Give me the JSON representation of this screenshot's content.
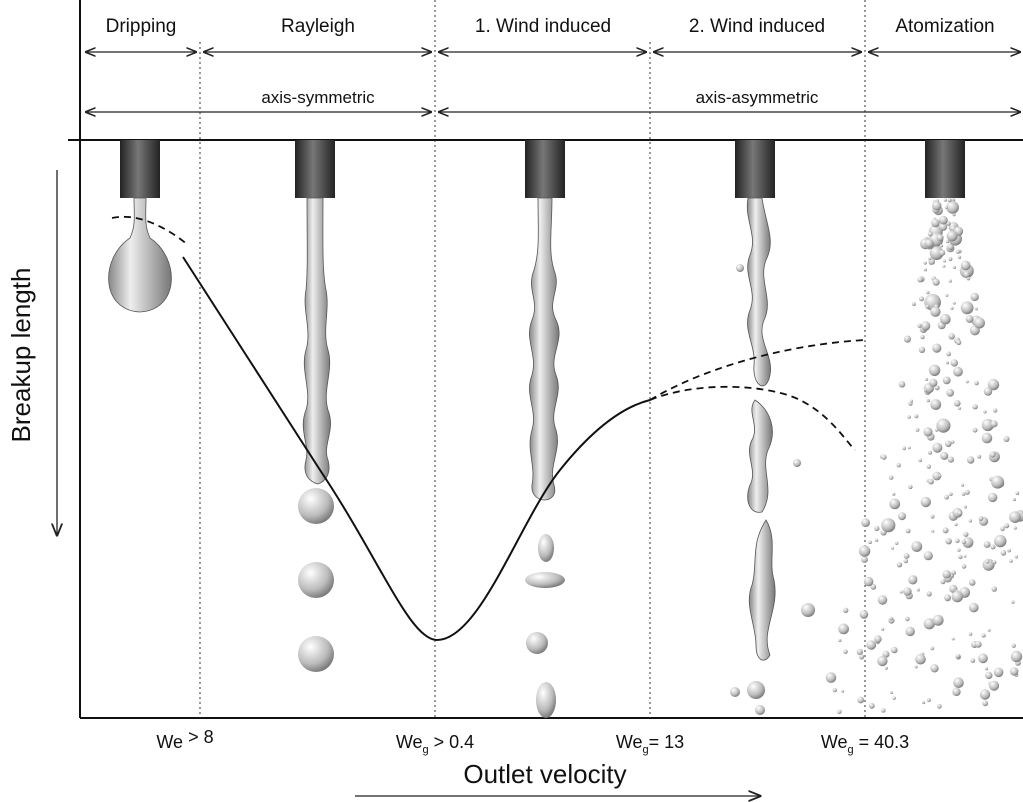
{
  "regions": [
    "Dripping",
    "Rayleigh",
    "1. Wind induced",
    "2. Wind induced",
    "Atomization"
  ],
  "symmetry": [
    "axis-symmetric",
    "axis-asymmetric"
  ],
  "y_axis_label": "Breakup length",
  "x_axis_label": "Outlet velocity",
  "thresholds": [
    {
      "base": "We",
      "sub": "",
      "rest": " > 8"
    },
    {
      "base": "We",
      "sub": "g",
      "rest": " > 0.4"
    },
    {
      "base": "We",
      "sub": "g",
      "rest": "= 13"
    },
    {
      "base": "We",
      "sub": "g",
      "rest": " = 40.3"
    }
  ]
}
